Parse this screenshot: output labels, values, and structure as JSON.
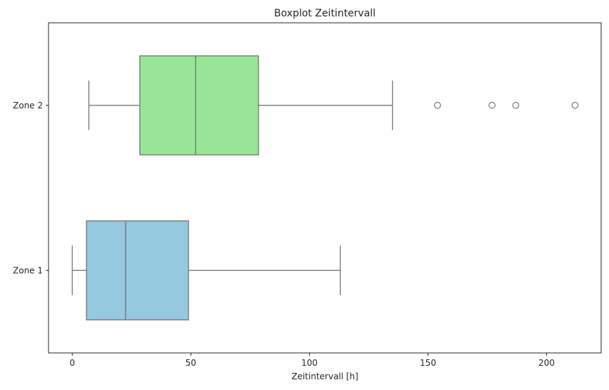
{
  "chart_data": {
    "type": "boxplot",
    "orientation": "horizontal",
    "title": "Boxplot Zeitintervall",
    "xlabel": "Zeitintervall [h]",
    "ylabel": "",
    "xlim": [
      -10,
      223
    ],
    "xticks": [
      0,
      50,
      100,
      150,
      200
    ],
    "grid": false,
    "categories": [
      "Zone 2",
      "Zone 1"
    ],
    "boxes": [
      {
        "category": "Zone 2",
        "whisker_low": 7,
        "q1": 28.5,
        "median": 52,
        "q3": 78.5,
        "whisker_high": 135,
        "outliers": [
          154,
          177,
          187,
          212
        ],
        "color": "#98e598"
      },
      {
        "category": "Zone 1",
        "whisker_low": 0,
        "q1": 6,
        "median": 22.5,
        "q3": 49,
        "whisker_high": 113,
        "outliers": [],
        "color": "#94c9df"
      }
    ],
    "line_color": "#6b6b6b"
  }
}
